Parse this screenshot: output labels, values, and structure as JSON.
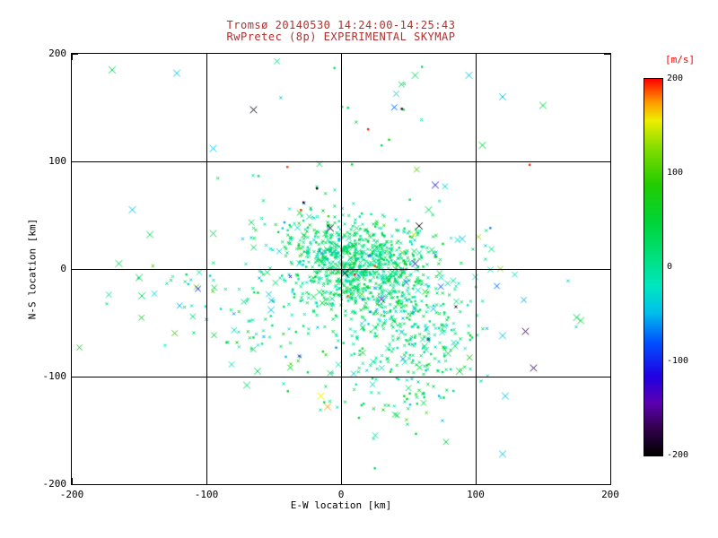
{
  "figure": {
    "background": "#ffffff",
    "title_color": "#b03030",
    "axis_color": "#000000"
  },
  "chart_data": {
    "type": "scatter",
    "title": "Tromsø 20140530 14:24:00-14:25:43",
    "subtitle": "RwPretec (8p) EXPERIMENTAL SKYMAP",
    "xlabel": "E-W location [km]",
    "ylabel": "N-S location [km]",
    "xlim": [
      -200,
      200
    ],
    "ylim": [
      -200,
      200
    ],
    "xticks": [
      -200,
      -100,
      0,
      100,
      200
    ],
    "yticks": [
      -200,
      -100,
      0,
      100,
      200
    ],
    "grid": true,
    "colorbar": {
      "label": "[m/s]",
      "label_color": "#ff0000",
      "range": [
        -200,
        200
      ],
      "ticks": [
        200,
        100,
        0,
        -100,
        -200
      ]
    },
    "colormap": [
      {
        "f": 0.0,
        "c": "#000000"
      },
      {
        "f": 0.07,
        "c": "#30004a"
      },
      {
        "f": 0.14,
        "c": "#5a00b0"
      },
      {
        "f": 0.21,
        "c": "#2000e0"
      },
      {
        "f": 0.3,
        "c": "#0050ff"
      },
      {
        "f": 0.38,
        "c": "#00c0ea"
      },
      {
        "f": 0.45,
        "c": "#00e6c0"
      },
      {
        "f": 0.53,
        "c": "#00e07a"
      },
      {
        "f": 0.62,
        "c": "#00d438"
      },
      {
        "f": 0.72,
        "c": "#22cc00"
      },
      {
        "f": 0.82,
        "c": "#88dd00"
      },
      {
        "f": 0.89,
        "c": "#eeee00"
      },
      {
        "f": 0.94,
        "c": "#ff9500"
      },
      {
        "f": 1.0,
        "c": "#ff0000"
      }
    ],
    "seed": 1337,
    "point_clusters": [
      {
        "count": 800,
        "cx": 15,
        "cy": 2,
        "sx": 24,
        "sy": 21,
        "v_mean": 15,
        "v_std": 25,
        "big_frac": 0.05
      },
      {
        "count": 260,
        "cx": 52,
        "cy": -58,
        "sx": 24,
        "sy": 28,
        "v_mean": 12,
        "v_std": 30,
        "big_frac": 0.08
      },
      {
        "count": 190,
        "cx": 8,
        "cy": -10,
        "sx": 55,
        "sy": 45,
        "v_mean": 5,
        "v_std": 45,
        "big_frac": 0.12
      },
      {
        "count": 60,
        "cx": 42,
        "cy": -118,
        "sx": 28,
        "sy": 22,
        "v_mean": 15,
        "v_std": 40,
        "big_frac": 0.15
      },
      {
        "count": 26,
        "cx": -120,
        "cy": -28,
        "sx": 26,
        "sy": 18,
        "v_mean": -5,
        "v_std": 55,
        "big_frac": 0.5
      },
      {
        "count": 30,
        "cx": -55,
        "cy": -58,
        "sx": 25,
        "sy": 22,
        "v_mean": 5,
        "v_std": 40,
        "big_frac": 0.4
      },
      {
        "count": 14,
        "cx": 25,
        "cy": 142,
        "sx": 45,
        "sy": 28,
        "v_mean": 10,
        "v_std": 50,
        "big_frac": 0.3
      },
      {
        "count": 16,
        "cx": 95,
        "cy": -15,
        "sx": 28,
        "sy": 42,
        "v_mean": -10,
        "v_std": 60,
        "big_frac": 0.5
      },
      {
        "count": 60,
        "cx": -25,
        "cy": 28,
        "sx": 18,
        "sy": 15,
        "v_mean": 10,
        "v_std": 35,
        "big_frac": 0.08
      }
    ],
    "outlier_points": [
      [
        -170,
        185,
        30,
        "X"
      ],
      [
        -122,
        182,
        -45,
        "X"
      ],
      [
        -65,
        148,
        -195,
        "X"
      ],
      [
        -95,
        112,
        -45,
        "X"
      ],
      [
        120,
        160,
        -45,
        "X"
      ],
      [
        150,
        152,
        40,
        "X"
      ],
      [
        105,
        115,
        45,
        "X"
      ],
      [
        55,
        180,
        25,
        "X"
      ],
      [
        -5,
        187,
        20,
        "dot"
      ],
      [
        20,
        130,
        195,
        "dot"
      ],
      [
        -40,
        95,
        190,
        "dot"
      ],
      [
        -18,
        75,
        -195,
        "dot"
      ],
      [
        -28,
        62,
        -185,
        "dot"
      ],
      [
        70,
        78,
        -110,
        "X"
      ],
      [
        140,
        97,
        195,
        "dot"
      ],
      [
        -155,
        55,
        -45,
        "X"
      ],
      [
        -142,
        32,
        30,
        "X"
      ],
      [
        -165,
        5,
        30,
        "X"
      ],
      [
        -150,
        -8,
        40,
        "X"
      ],
      [
        -148,
        -25,
        20,
        "X"
      ],
      [
        178,
        -48,
        40,
        "X"
      ],
      [
        137,
        -58,
        -170,
        "X"
      ],
      [
        175,
        -45,
        35,
        "X"
      ],
      [
        120,
        -62,
        -45,
        "X"
      ],
      [
        90,
        28,
        -45,
        "X"
      ],
      [
        65,
        55,
        30,
        "X"
      ],
      [
        58,
        40,
        -195,
        "X"
      ],
      [
        -8,
        38,
        -200,
        "X"
      ],
      [
        -30,
        55,
        190,
        "dot"
      ],
      [
        122,
        -118,
        -45,
        "X"
      ],
      [
        143,
        -92,
        -170,
        "X"
      ],
      [
        88,
        -95,
        55,
        "X"
      ],
      [
        -15,
        -118,
        155,
        "X"
      ],
      [
        -10,
        -128,
        175,
        "X"
      ],
      [
        -62,
        -95,
        30,
        "X"
      ],
      [
        -70,
        -108,
        20,
        "X"
      ],
      [
        25,
        -185,
        30,
        "dot"
      ],
      [
        120,
        -172,
        -45,
        "X"
      ],
      [
        -95,
        33,
        30,
        "X"
      ],
      [
        -115,
        -5,
        25,
        "dot"
      ],
      [
        30,
        115,
        30,
        "dot"
      ],
      [
        5,
        150,
        30,
        "dot"
      ],
      [
        45,
        149,
        -180,
        "dot"
      ],
      [
        -52,
        -38,
        -45,
        "X"
      ],
      [
        55,
        5,
        -110,
        "X"
      ],
      [
        30,
        -28,
        -140,
        "X"
      ],
      [
        10,
        -5,
        200,
        "dot"
      ],
      [
        25,
        3,
        190,
        "dot"
      ],
      [
        5,
        -25,
        185,
        "dot"
      ],
      [
        3,
        -4,
        -200,
        "X"
      ],
      [
        60,
        188,
        25,
        "dot"
      ],
      [
        95,
        180,
        -45,
        "X"
      ]
    ]
  }
}
